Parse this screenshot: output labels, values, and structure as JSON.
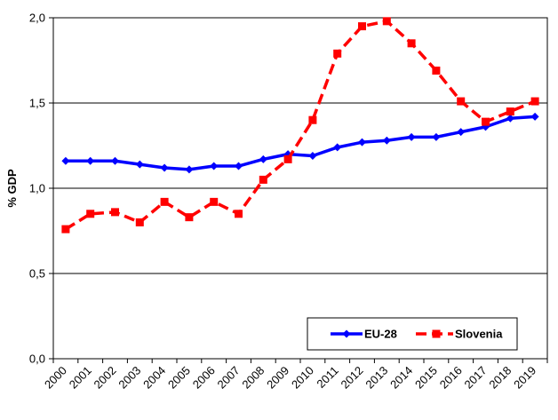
{
  "chart_data": {
    "type": "line",
    "title": "",
    "xlabel": "",
    "ylabel": "% GDP",
    "ylim": [
      0,
      2
    ],
    "yticks": [
      "0,0",
      "0,5",
      "1,0",
      "1,5",
      "2,0"
    ],
    "ytick_values": [
      0,
      0.5,
      1.0,
      1.5,
      2.0
    ],
    "categories": [
      "2000",
      "2001",
      "2002",
      "2003",
      "2004",
      "2005",
      "2006",
      "2007",
      "2008",
      "2009",
      "2010",
      "2011",
      "2012",
      "2013",
      "2014",
      "2015",
      "2016",
      "2017",
      "2018",
      "2019"
    ],
    "grid": true,
    "legend_position": "bottom-right",
    "series": [
      {
        "name": "EU-28",
        "color": "#0000ff",
        "style": "solid",
        "marker": "diamond",
        "values": [
          1.16,
          1.16,
          1.16,
          1.14,
          1.12,
          1.11,
          1.13,
          1.13,
          1.17,
          1.2,
          1.19,
          1.24,
          1.27,
          1.28,
          1.3,
          1.3,
          1.33,
          1.36,
          1.41,
          1.42
        ]
      },
      {
        "name": "Slovenia",
        "color": "#ff0000",
        "style": "dashed",
        "marker": "square",
        "values": [
          0.76,
          0.85,
          0.86,
          0.8,
          0.92,
          0.83,
          0.92,
          0.85,
          1.05,
          1.17,
          1.4,
          1.79,
          1.95,
          1.98,
          1.85,
          1.69,
          1.51,
          1.39,
          1.45,
          1.51
        ]
      }
    ]
  }
}
